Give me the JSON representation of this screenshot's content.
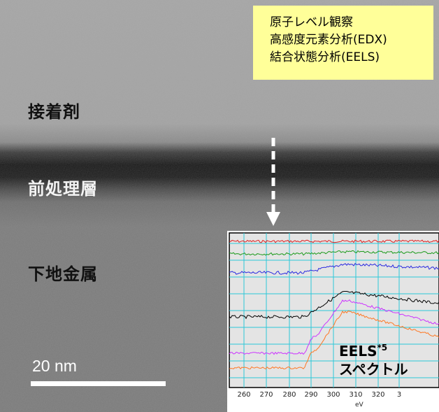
{
  "tem_image": {
    "layers": {
      "adhesive": "接着剤",
      "pretreatment": "前処理層",
      "base_metal": "下地金属"
    },
    "scale_bar": "20 nm"
  },
  "yellow_box": {
    "line1": "原子レベル観察",
    "line2": "高感度元素分析(EDX)",
    "line3": "結合状態分析(EELS)"
  },
  "eels_inset": {
    "label_line1": "EELS",
    "label_superscript": "*5",
    "label_line2": "スペクトル",
    "x_ticks": [
      "260",
      "270",
      "280",
      "290",
      "300",
      "310",
      "320",
      "3"
    ],
    "x_unit": "eV",
    "spectrum_colors": [
      "#e02020",
      "#1a9a1a",
      "#2a2ae0",
      "#000000",
      "#cc33ff",
      "#ff7722"
    ]
  }
}
